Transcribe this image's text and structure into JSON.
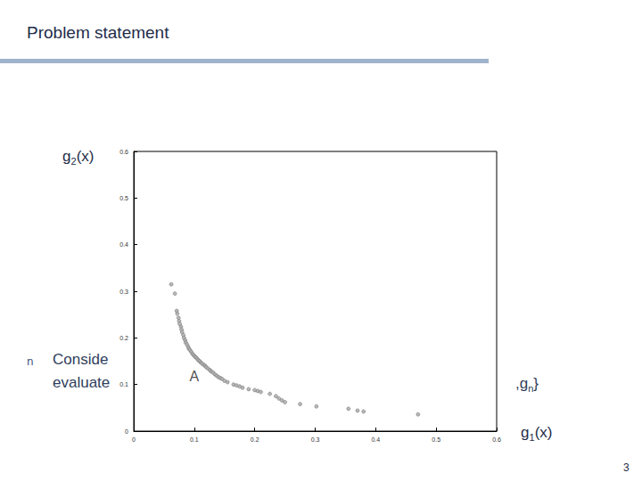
{
  "slide": {
    "title": "Problem statement",
    "bullet": "n",
    "body": [
      "Conside",
      "evaluate"
    ],
    "fragment": {
      "text": ",g",
      "sub": "n",
      "after": "}"
    },
    "page_number": "3"
  },
  "chart_data": {
    "type": "scatter",
    "x_label": {
      "text": "g",
      "sub": "1",
      "after": "(x)"
    },
    "y_label": {
      "text": "g",
      "sub": "2",
      "after": "(x)"
    },
    "annotation": {
      "text": "A",
      "x": 0.1,
      "y": 0.118
    },
    "color": "#b0b0b0",
    "marker": "circle",
    "grid": false,
    "xlim": [
      0,
      0.6
    ],
    "ylim": [
      0,
      0.6
    ],
    "xticks": [
      0,
      0.1,
      0.2,
      0.3,
      0.4,
      0.5,
      0.6
    ],
    "yticks": [
      0,
      0.1,
      0.2,
      0.3,
      0.4,
      0.5,
      0.6
    ],
    "x": [
      0.062,
      0.068,
      0.071,
      0.072,
      0.074,
      0.075,
      0.076,
      0.078,
      0.079,
      0.08,
      0.082,
      0.083,
      0.085,
      0.086,
      0.088,
      0.09,
      0.091,
      0.093,
      0.095,
      0.097,
      0.099,
      0.101,
      0.103,
      0.105,
      0.107,
      0.109,
      0.111,
      0.113,
      0.116,
      0.118,
      0.12,
      0.123,
      0.126,
      0.128,
      0.131,
      0.134,
      0.137,
      0.14,
      0.143,
      0.146,
      0.15,
      0.155,
      0.165,
      0.17,
      0.175,
      0.18,
      0.19,
      0.2,
      0.205,
      0.21,
      0.225,
      0.235,
      0.24,
      0.245,
      0.25,
      0.275,
      0.302,
      0.355,
      0.37,
      0.38,
      0.47
    ],
    "values": [
      0.315,
      0.295,
      0.258,
      0.252,
      0.243,
      0.236,
      0.23,
      0.224,
      0.218,
      0.212,
      0.206,
      0.2,
      0.195,
      0.19,
      0.186,
      0.181,
      0.177,
      0.174,
      0.17,
      0.166,
      0.163,
      0.16,
      0.158,
      0.155,
      0.152,
      0.15,
      0.147,
      0.145,
      0.142,
      0.14,
      0.137,
      0.134,
      0.131,
      0.128,
      0.126,
      0.122,
      0.119,
      0.116,
      0.114,
      0.112,
      0.108,
      0.105,
      0.1,
      0.098,
      0.096,
      0.093,
      0.09,
      0.088,
      0.086,
      0.084,
      0.08,
      0.075,
      0.07,
      0.066,
      0.062,
      0.058,
      0.053,
      0.048,
      0.044,
      0.042,
      0.036
    ]
  }
}
